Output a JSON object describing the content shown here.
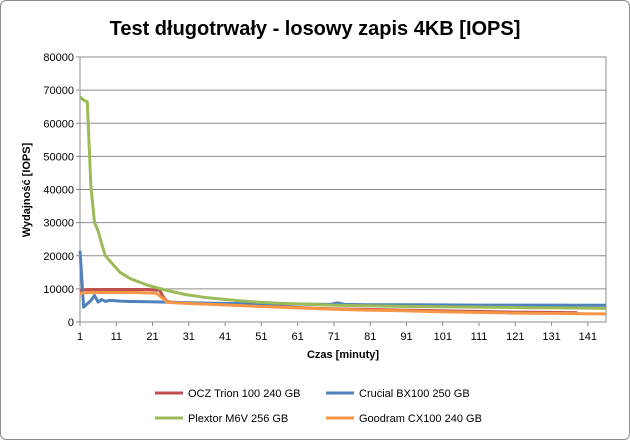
{
  "chart_data": {
    "type": "line",
    "title": "Test długotrwały - losowy zapis 4KB [IOPS]",
    "xlabel": "Czas [minuty]",
    "ylabel": "Wydajność [IOPS]",
    "ylim": [
      0,
      80000
    ],
    "xlim": [
      1,
      146
    ],
    "y_ticks": [
      "0",
      "10000",
      "20000",
      "30000",
      "40000",
      "50000",
      "60000",
      "70000",
      "80000"
    ],
    "x_ticks": [
      "1",
      "11",
      "21",
      "31",
      "41",
      "51",
      "61",
      "71",
      "81",
      "91",
      "101",
      "111",
      "121",
      "131",
      "141"
    ],
    "grid": "horizontal",
    "legend_position": "bottom",
    "series": [
      {
        "name": "OCZ Trion 100 240 GB",
        "color": "#c0504d",
        "x": [
          1,
          2,
          3,
          5,
          10,
          15,
          20,
          23,
          24,
          25,
          26,
          30,
          35,
          40,
          45,
          50,
          55,
          60,
          65,
          70,
          75,
          80,
          85,
          90,
          95,
          100,
          105,
          110,
          115,
          120,
          125,
          130,
          135,
          138
        ],
        "y": [
          9500,
          9700,
          9800,
          9800,
          9800,
          9800,
          9800,
          9600,
          7500,
          6200,
          6000,
          5800,
          5600,
          5400,
          5100,
          4900,
          4600,
          4400,
          4200,
          4000,
          3900,
          3800,
          3700,
          3600,
          3500,
          3400,
          3300,
          3200,
          3100,
          3000,
          2950,
          2900,
          2850,
          2850
        ]
      },
      {
        "name": "Crucial BX100 250 GB",
        "color": "#4f81bd",
        "x": [
          1,
          2,
          3,
          4,
          5,
          6,
          7,
          8,
          9,
          10,
          12,
          15,
          20,
          25,
          30,
          40,
          50,
          60,
          70,
          72,
          74,
          80,
          90,
          100,
          110,
          120,
          130,
          140,
          146
        ],
        "y": [
          21500,
          4500,
          5500,
          6500,
          8000,
          6000,
          6800,
          6200,
          6500,
          6500,
          6300,
          6200,
          6100,
          6000,
          5800,
          5600,
          5500,
          5400,
          5300,
          5800,
          5300,
          5200,
          5200,
          5150,
          5100,
          5100,
          5100,
          5050,
          5050
        ]
      },
      {
        "name": "Plextor M6V 256 GB",
        "color": "#9bbb59",
        "x": [
          1,
          2,
          3,
          4,
          5,
          6,
          7,
          8,
          10,
          12,
          15,
          20,
          25,
          30,
          35,
          40,
          45,
          50,
          55,
          60,
          65,
          70,
          80,
          90,
          100,
          110,
          120,
          125,
          130,
          140,
          146
        ],
        "y": [
          68000,
          67000,
          66500,
          41000,
          30000,
          27500,
          23500,
          20000,
          17500,
          15000,
          13000,
          11000,
          9500,
          8300,
          7500,
          6900,
          6400,
          6000,
          5700,
          5500,
          5300,
          5100,
          4900,
          4700,
          4600,
          4500,
          4400,
          4300,
          4300,
          4200,
          4100
        ]
      },
      {
        "name": "Goodram CX100 240 GB",
        "color": "#f79646",
        "x": [
          1,
          2,
          3,
          5,
          10,
          15,
          20,
          22,
          24,
          25,
          26,
          30,
          40,
          50,
          60,
          70,
          80,
          90,
          100,
          110,
          120,
          130,
          140,
          146
        ],
        "y": [
          8500,
          8800,
          8900,
          8900,
          8900,
          8900,
          8800,
          8700,
          7000,
          6000,
          5900,
          5600,
          5200,
          4700,
          4300,
          3900,
          3600,
          3400,
          3100,
          2900,
          2700,
          2600,
          2500,
          2450
        ]
      }
    ]
  }
}
